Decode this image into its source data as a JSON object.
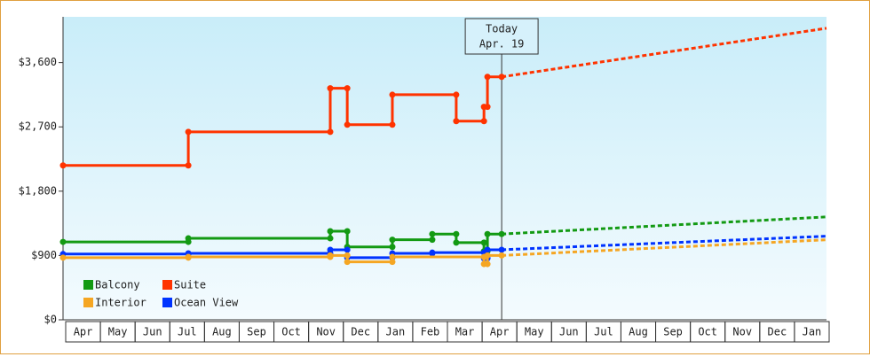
{
  "chart_data": {
    "type": "line",
    "categories": [
      "Apr",
      "May",
      "Jun",
      "Jul",
      "Aug",
      "Sep",
      "Oct",
      "Nov",
      "Dec",
      "Jan",
      "Feb",
      "Mar",
      "Apr",
      "May",
      "Jun",
      "Jul",
      "Aug",
      "Sep",
      "Oct",
      "Nov",
      "Dec",
      "Jan"
    ],
    "xlim": [
      0,
      22
    ],
    "ylim": [
      0,
      4240
    ],
    "yticks": [
      {
        "value": 0,
        "label": "$0"
      },
      {
        "value": 900,
        "label": "$900"
      },
      {
        "value": 1800,
        "label": "$1,800"
      },
      {
        "value": 2700,
        "label": "$2,700"
      },
      {
        "value": 3600,
        "label": "$3,600"
      }
    ],
    "today": {
      "x": 12.64,
      "label": "Today",
      "date": "Apr. 19"
    },
    "legend": "bottom-left",
    "series": [
      {
        "name": "Balcony",
        "color": "#139a13",
        "x": [
          0,
          3.61,
          3.61,
          7.7,
          7.7,
          8.19,
          8.19,
          9.49,
          9.49,
          10.64,
          10.64,
          11.33,
          11.33,
          12.13,
          12.13,
          12.23,
          12.23,
          12.64
        ],
        "values": [
          1090,
          1090,
          1140,
          1140,
          1240,
          1240,
          1020,
          1020,
          1120,
          1120,
          1200,
          1200,
          1080,
          1080,
          960,
          960,
          1200,
          1200
        ],
        "forecast_x": [
          12.64,
          22
        ],
        "forecast_values": [
          1200,
          1440
        ]
      },
      {
        "name": "Suite",
        "color": "#ff3300",
        "x": [
          0,
          3.61,
          3.61,
          7.7,
          7.7,
          8.19,
          8.19,
          9.49,
          9.49,
          11.33,
          11.33,
          12.13,
          12.13,
          12.23,
          12.23,
          12.64
        ],
        "values": [
          2160,
          2160,
          2630,
          2630,
          3240,
          3240,
          2730,
          2730,
          3150,
          3150,
          2780,
          2780,
          2980,
          2980,
          3400,
          3400
        ],
        "forecast_x": [
          12.64,
          22
        ],
        "forecast_values": [
          3400,
          4080
        ]
      },
      {
        "name": "Interior",
        "color": "#f5a623",
        "x": [
          0,
          3.61,
          3.61,
          7.7,
          7.7,
          8.19,
          8.19,
          9.49,
          9.49,
          12.13,
          12.13,
          12.23,
          12.23,
          12.64
        ],
        "values": [
          870,
          870,
          880,
          880,
          900,
          900,
          810,
          810,
          880,
          880,
          780,
          780,
          900,
          900
        ],
        "forecast_x": [
          12.64,
          22
        ],
        "forecast_values": [
          900,
          1120
        ]
      },
      {
        "name": "Ocean View",
        "color": "#0033ff",
        "x": [
          0,
          3.61,
          3.61,
          7.7,
          7.7,
          8.19,
          8.19,
          9.49,
          9.49,
          10.64,
          10.64,
          12.13,
          12.13,
          12.23,
          12.23,
          12.64
        ],
        "values": [
          920,
          920,
          930,
          930,
          980,
          980,
          870,
          870,
          930,
          930,
          940,
          940,
          860,
          860,
          980,
          980
        ],
        "forecast_x": [
          12.64,
          22
        ],
        "forecast_values": [
          980,
          1170
        ]
      }
    ]
  }
}
